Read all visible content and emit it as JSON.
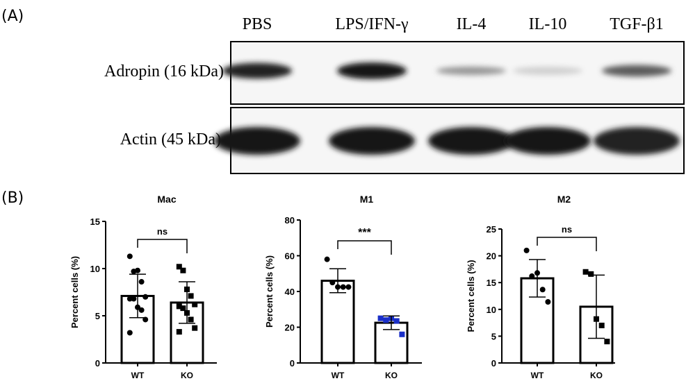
{
  "panel_a": {
    "label": "(A)",
    "lanes": [
      "PBS",
      "LPS/IFN-γ",
      "IL-4",
      "IL-10",
      "TGF-β1"
    ],
    "rows": [
      {
        "label": "Adropin (16 kDa)",
        "intensity": [
          0.95,
          1.0,
          0.45,
          0.2,
          0.7
        ]
      },
      {
        "label": "Actin (45 kDa)",
        "intensity": [
          1.0,
          1.0,
          1.0,
          1.0,
          0.95
        ]
      }
    ]
  },
  "panel_b": {
    "label": "(B)"
  },
  "chart_data": [
    {
      "type": "bar",
      "title": "Mac",
      "ylabel": "Percent cells (%)",
      "categories": [
        "WT",
        "KO"
      ],
      "ylim": [
        0,
        15
      ],
      "yticks": [
        0,
        5,
        10,
        15
      ],
      "means": [
        7.1,
        6.4
      ],
      "sd": [
        2.3,
        2.2
      ],
      "significance": "ns",
      "points": [
        [
          11.3,
          9.7,
          9.8,
          8.6,
          7.0,
          6.8,
          6.8,
          5.9,
          5.6,
          4.6,
          3.2
        ],
        [
          10.2,
          9.8,
          7.8,
          7.1,
          6.2,
          6.0,
          5.8,
          5.3,
          4.6,
          3.7,
          3.3
        ]
      ],
      "markers": [
        "circle",
        "square"
      ],
      "colors": [
        "#000000",
        "#000000"
      ]
    },
    {
      "type": "bar",
      "title": "M1",
      "ylabel": "Percent cells (%)",
      "categories": [
        "WT",
        "KO"
      ],
      "ylim": [
        0,
        80
      ],
      "yticks": [
        0,
        20,
        40,
        60,
        80
      ],
      "means": [
        46,
        22.5
      ],
      "sd": [
        6.7,
        3.8
      ],
      "significance": "***",
      "points": [
        [
          58,
          45,
          42.5,
          42.5,
          42.5
        ],
        [
          25,
          24,
          25,
          23.5,
          16
        ]
      ],
      "markers": [
        "circle",
        "square"
      ],
      "colors": [
        "#000000",
        "#1a2fc8"
      ]
    },
    {
      "type": "bar",
      "title": "M2",
      "ylabel": "Percent cells (%)",
      "categories": [
        "WT",
        "KO"
      ],
      "ylim": [
        0,
        25
      ],
      "yticks": [
        0,
        5,
        10,
        15,
        20,
        25
      ],
      "means": [
        15.8,
        10.5
      ],
      "sd": [
        3.5,
        5.9
      ],
      "significance": "ns",
      "points": [
        [
          21,
          16.2,
          16.8,
          13.7,
          11.4
        ],
        [
          17,
          16.6,
          8.2,
          7,
          4
        ]
      ],
      "markers": [
        "circle",
        "square"
      ],
      "colors": [
        "#000000",
        "#000000"
      ]
    }
  ]
}
